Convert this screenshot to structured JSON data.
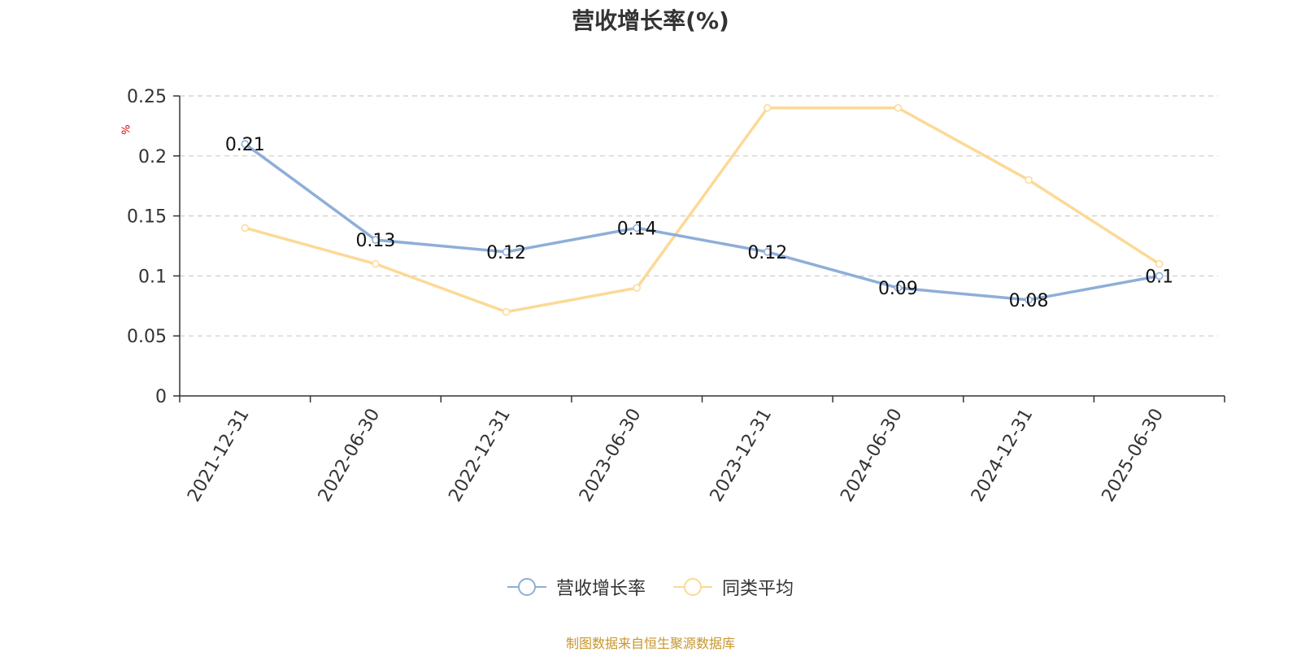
{
  "chart_data": {
    "type": "line",
    "title": "营收增长率(%)",
    "ylabel": "%",
    "categories": [
      "2021-12-31",
      "2022-06-30",
      "2022-12-31",
      "2023-06-30",
      "2023-12-31",
      "2024-06-30",
      "2024-12-31",
      "2025-06-30"
    ],
    "ylim": [
      0,
      0.25
    ],
    "yticks": [
      "0",
      "0.05",
      "0.1",
      "0.15",
      "0.2",
      "0.25"
    ],
    "grid": true,
    "legend_position": "bottom",
    "series": [
      {
        "name": "营收增长率",
        "color": "#8eaed8",
        "values": [
          0.21,
          0.13,
          0.12,
          0.14,
          0.12,
          0.09,
          0.08,
          0.1
        ],
        "labels": [
          "0.21",
          "0.13",
          "0.12",
          "0.14",
          "0.12",
          "0.09",
          "0.08",
          "0.1"
        ]
      },
      {
        "name": "同类平均",
        "color": "#fcd996",
        "values": [
          0.14,
          0.11,
          0.07,
          0.09,
          0.24,
          0.24,
          0.18,
          0.11
        ]
      }
    ]
  },
  "source_note": "制图数据来自恒生聚源数据库"
}
